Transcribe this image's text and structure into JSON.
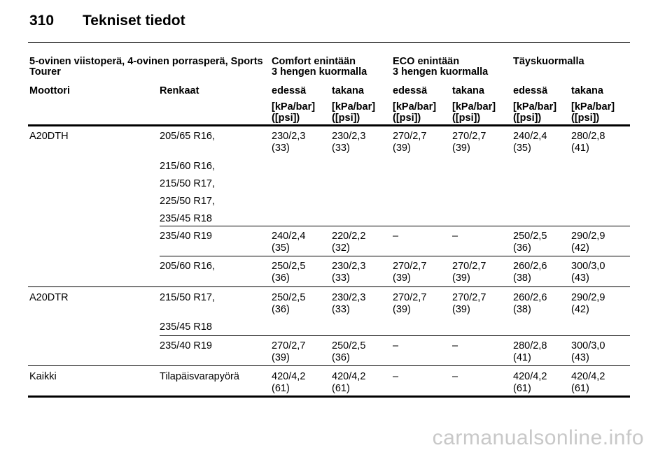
{
  "page": {
    "number": "310",
    "title": "Tekniset tiedot",
    "watermark": "carmanualsonline.info"
  },
  "table": {
    "header_top": {
      "model": "5-ovinen viistoperä, 4-ovinen porrasperä, Sports",
      "model_line2": "Tourer",
      "comfort": "Comfort enintään",
      "comfort_line2": "3 hengen kuormalla",
      "eco": "ECO enintään",
      "eco_line2": "3 hengen kuormalla",
      "full": "Täyskuormalla"
    },
    "header_mid": {
      "engine": "Moottori",
      "tyres": "Renkaat",
      "front1": "edessä",
      "rear1": "takana",
      "front2": "edessä",
      "rear2": "takana",
      "front3": "edessä",
      "rear3": "takana"
    },
    "unit_line1": "[kPa/bar]",
    "unit_line2": "([psi])",
    "rows": [
      {
        "engine": "A20DTH",
        "tyres": [
          "205/65 R16,",
          "215/60 R16,",
          "215/50 R17,",
          "225/50 R17,",
          "235/45 R18"
        ],
        "values": [
          [
            "230/2,3",
            "(33)"
          ],
          [
            "230/2,3",
            "(33)"
          ],
          [
            "270/2,7",
            "(39)"
          ],
          [
            "270/2,7",
            "(39)"
          ],
          [
            "240/2,4",
            "(35)"
          ],
          [
            "280/2,8",
            "(41)"
          ]
        ]
      },
      {
        "engine": "",
        "tyres": [
          "235/40 R19"
        ],
        "values": [
          [
            "240/2,4",
            "(35)"
          ],
          [
            "220/2,2",
            "(32)"
          ],
          [
            "–",
            ""
          ],
          [
            "–",
            ""
          ],
          [
            "250/2,5",
            "(36)"
          ],
          [
            "290/2,9",
            "(42)"
          ]
        ]
      },
      {
        "engine": "",
        "tyres": [
          "205/60 R16,"
        ],
        "values": [
          [
            "250/2,5",
            "(36)"
          ],
          [
            "230/2,3",
            "(33)"
          ],
          [
            "270/2,7",
            "(39)"
          ],
          [
            "270/2,7",
            "(39)"
          ],
          [
            "260/2,6",
            "(38)"
          ],
          [
            "300/3,0",
            "(43)"
          ]
        ]
      },
      {
        "engine": "A20DTR",
        "tyres": [
          "215/50 R17,",
          "235/45 R18"
        ],
        "values": [
          [
            "250/2,5",
            "(36)"
          ],
          [
            "230/2,3",
            "(33)"
          ],
          [
            "270/2,7",
            "(39)"
          ],
          [
            "270/2,7",
            "(39)"
          ],
          [
            "260/2,6",
            "(38)"
          ],
          [
            "290/2,9",
            "(42)"
          ]
        ]
      },
      {
        "engine": "",
        "tyres": [
          "235/40 R19"
        ],
        "values": [
          [
            "270/2,7",
            "(39)"
          ],
          [
            "250/2,5",
            "(36)"
          ],
          [
            "–",
            ""
          ],
          [
            "–",
            ""
          ],
          [
            "280/2,8",
            "(41)"
          ],
          [
            "300/3,0",
            "(43)"
          ]
        ]
      },
      {
        "engine": "Kaikki",
        "tyres": [
          "Tilapäisvarapyörä"
        ],
        "values": [
          [
            "420/4,2",
            "(61)"
          ],
          [
            "420/4,2",
            "(61)"
          ],
          [
            "–",
            ""
          ],
          [
            "–",
            ""
          ],
          [
            "420/4,2",
            "(61)"
          ],
          [
            "420/4,2",
            "(61)"
          ]
        ]
      }
    ]
  }
}
